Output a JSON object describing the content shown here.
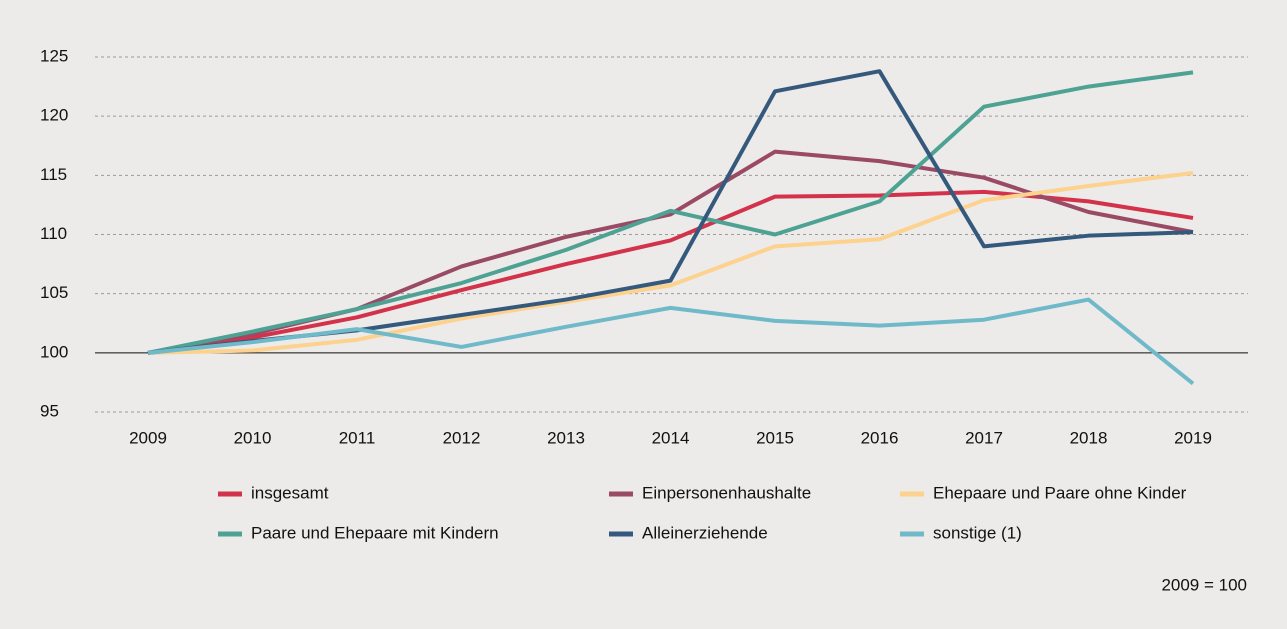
{
  "chart_data": {
    "type": "line",
    "categories": [
      "2009",
      "2010",
      "2011",
      "2012",
      "2013",
      "2014",
      "2015",
      "2016",
      "2017",
      "2018",
      "2019"
    ],
    "series": [
      {
        "name": "insgesamt",
        "color": "#d2334b",
        "values": [
          100,
          101.3,
          103,
          105.3,
          107.5,
          109.5,
          113.2,
          113.3,
          113.6,
          112.8,
          111.4
        ]
      },
      {
        "name": "Einpersonenhaushalte",
        "color": "#9a4a65",
        "values": [
          100,
          101.6,
          103.7,
          107.3,
          109.8,
          111.7,
          117,
          116.2,
          114.8,
          111.9,
          110.2
        ]
      },
      {
        "name": "Ehepaare und Paare ohne Kinder",
        "color": "#fdd18e",
        "values": [
          100,
          100.2,
          101.1,
          102.9,
          104.3,
          105.7,
          109,
          109.6,
          112.9,
          114.1,
          115.2
        ]
      },
      {
        "name": "Paare und Ehepaare mit Kindern",
        "color": "#4ea294",
        "values": [
          100,
          101.8,
          103.7,
          105.9,
          108.7,
          112,
          110,
          112.8,
          120.8,
          122.5,
          123.7
        ]
      },
      {
        "name": "Alleinerziehende",
        "color": "#35597d",
        "values": [
          100,
          101,
          101.9,
          103.2,
          104.5,
          106.1,
          122.1,
          123.8,
          109,
          109.9,
          110.2
        ]
      },
      {
        "name": "sonstige (1)",
        "color": "#6fb9c9",
        "values": [
          100,
          100.9,
          102,
          100.5,
          102.2,
          103.8,
          102.7,
          102.3,
          102.8,
          104.5,
          97.4
        ]
      }
    ],
    "ylim": [
      95,
      125
    ],
    "yticks": [
      95,
      100,
      105,
      110,
      115,
      120,
      125
    ],
    "grid": true,
    "reference_line": 100,
    "note": "2009 = 100"
  }
}
